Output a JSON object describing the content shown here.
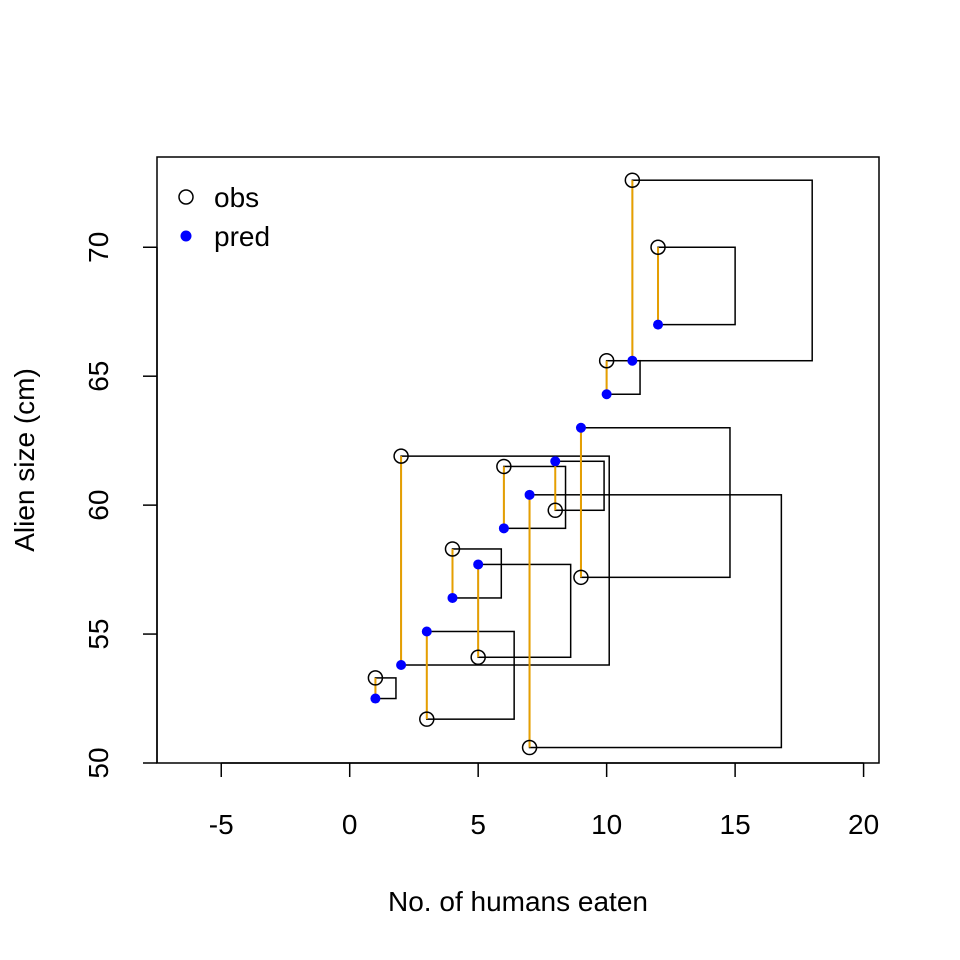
{
  "chart_data": {
    "type": "scatter",
    "xlabel": "No. of humans eaten",
    "ylabel": "Alien size (cm)",
    "xlim": [
      -7.5,
      20.6
    ],
    "ylim": [
      50,
      73.5
    ],
    "xticks": [
      -5,
      0,
      5,
      10,
      15,
      20
    ],
    "yticks": [
      50,
      55,
      60,
      65,
      70
    ],
    "grid": false,
    "legend_position": "top-left",
    "colors": {
      "obs": "#000000",
      "pred": "#0000ff",
      "residual": "#e69f00",
      "square": "#000000"
    },
    "series": [
      {
        "name": "obs",
        "x": [
          1,
          2,
          3,
          4,
          5,
          6,
          7,
          8,
          9,
          10,
          11,
          12
        ],
        "values": [
          53.3,
          61.9,
          51.7,
          58.3,
          54.1,
          61.5,
          50.6,
          59.8,
          57.2,
          65.6,
          72.6,
          70.0
        ]
      },
      {
        "name": "pred",
        "x": [
          1,
          2,
          3,
          4,
          5,
          6,
          7,
          8,
          9,
          10,
          11,
          12
        ],
        "values": [
          52.5,
          53.8,
          55.1,
          56.4,
          57.7,
          59.1,
          60.4,
          61.7,
          63.0,
          64.3,
          65.6,
          67.0
        ]
      }
    ]
  }
}
